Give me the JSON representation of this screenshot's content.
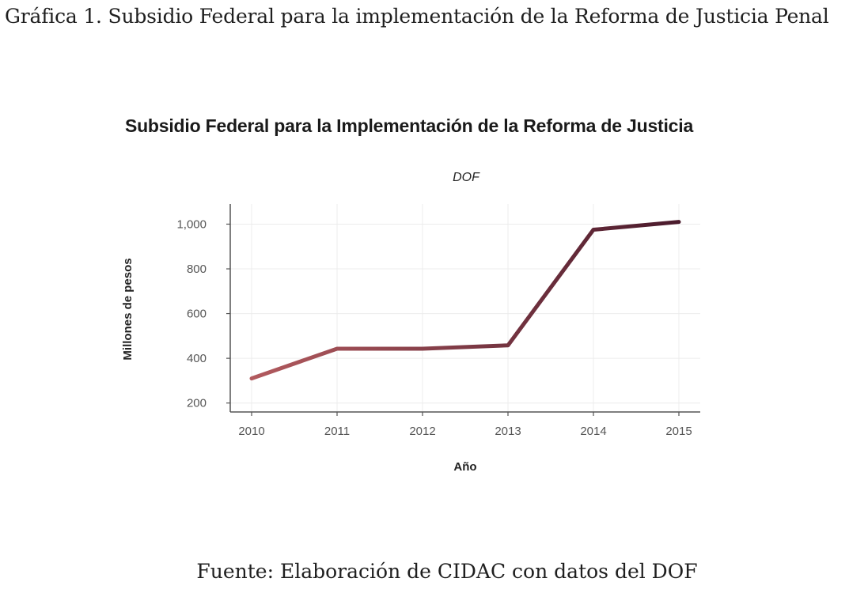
{
  "document": {
    "caption": "Gráfica 1. Subsidio Federal para la implementación de la Reforma de Justicia Penal",
    "source": "Fuente: Elaboración de CIDAC con datos del DOF"
  },
  "chart_data": {
    "type": "line",
    "title": "Subsidio Federal para la Implementación de la Reforma de Justicia",
    "subtitle": "DOF",
    "xlabel": "Año",
    "ylabel": "Millones de pesos",
    "x": [
      2010,
      2011,
      2012,
      2013,
      2014,
      2015
    ],
    "x_tick_labels": [
      "2010",
      "2011",
      "2012",
      "2013",
      "2014",
      "2015"
    ],
    "y_ticks": [
      200,
      400,
      600,
      800,
      1000
    ],
    "y_tick_labels": [
      "200",
      "400",
      "600",
      "800",
      "1,000"
    ],
    "ylim": [
      160,
      1090
    ],
    "grid": true,
    "series": [
      {
        "values": [
          310,
          443,
          443,
          458,
          975,
          1010
        ],
        "color_start": "#b25a5e",
        "color_end": "#4a1a2c"
      }
    ]
  }
}
